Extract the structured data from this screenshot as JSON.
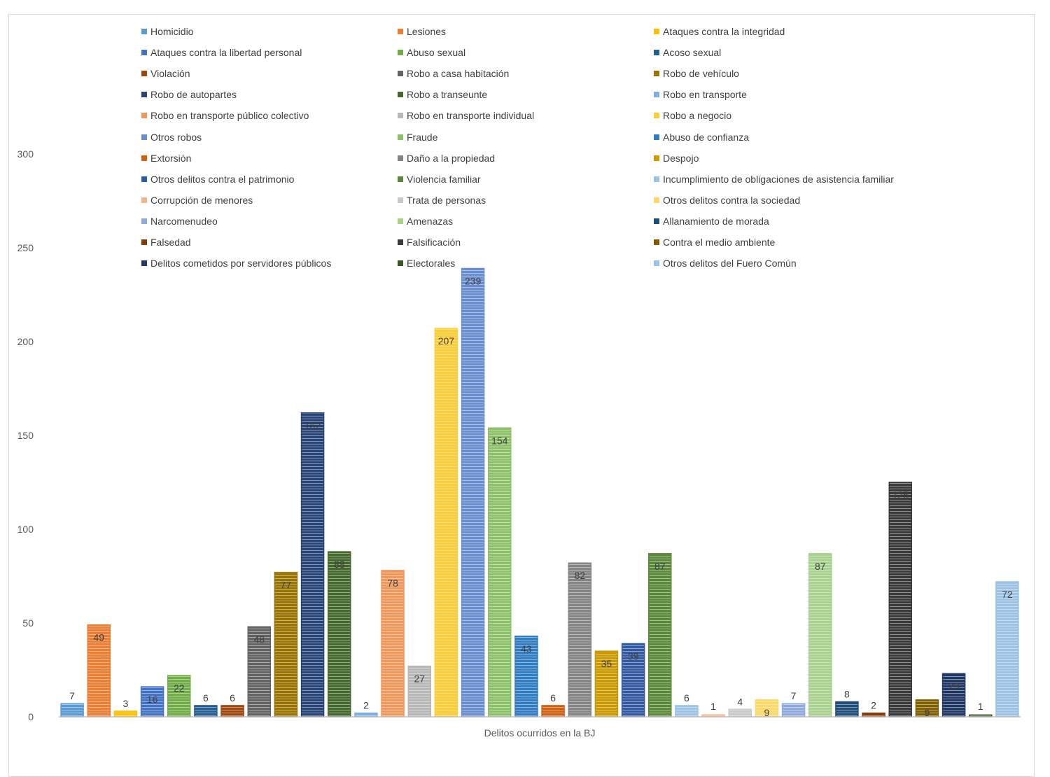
{
  "chart_data": {
    "type": "bar",
    "xlabel": "Delitos ocurridos en la BJ",
    "ylabel": "",
    "ylim": [
      0,
      300
    ],
    "yticks": [
      0,
      50,
      100,
      150,
      200,
      250,
      300
    ],
    "grid": false,
    "legend_position": "top",
    "series": [
      {
        "name": "Homicidio",
        "value": 7,
        "color": "#5b9bd5"
      },
      {
        "name": "Lesiones",
        "value": 49,
        "color": "#ed7d31"
      },
      {
        "name": "Ataques  contra la integridad",
        "value": 3,
        "color": "#ffc000"
      },
      {
        "name": "Ataques  contra la libertad personal",
        "value": 16,
        "color": "#4472c4"
      },
      {
        "name": "Abuso sexual",
        "value": 22,
        "color": "#70ad47"
      },
      {
        "name": "Acoso sexual",
        "value": 6,
        "color": "#255e91"
      },
      {
        "name": "Violación",
        "value": 6,
        "color": "#9e480e"
      },
      {
        "name": "Robo a casa habitación",
        "value": 48,
        "color": "#636363"
      },
      {
        "name": "Robo de vehículo",
        "value": 77,
        "color": "#997300"
      },
      {
        "name": "Robo de autopartes",
        "value": 162,
        "color": "#264478"
      },
      {
        "name": "Robo a transeunte",
        "value": 88,
        "color": "#43682b"
      },
      {
        "name": "Robo en transporte",
        "value": 2,
        "color": "#7cafdd"
      },
      {
        "name": "Robo en transporte público colectivo",
        "value": 78,
        "color": "#f1975a"
      },
      {
        "name": "Robo en transporte individual",
        "value": 27,
        "color": "#b7b7b7"
      },
      {
        "name": "Robo a negocio",
        "value": 207,
        "color": "#ffcd33"
      },
      {
        "name": "Otros robos",
        "value": 239,
        "color": "#698ed0"
      },
      {
        "name": "Fraude",
        "value": 154,
        "color": "#8cc168"
      },
      {
        "name": "Abuso de confianza",
        "value": 43,
        "color": "#327dc2"
      },
      {
        "name": "Extorsión",
        "value": 6,
        "color": "#d26012"
      },
      {
        "name": "Daño a la propiedad",
        "value": 82,
        "color": "#848484"
      },
      {
        "name": "Despojo",
        "value": 35,
        "color": "#cc9a00"
      },
      {
        "name": "Otros delitos contra el patrimonio",
        "value": 39,
        "color": "#335aa1"
      },
      {
        "name": "Violencia familiar",
        "value": 87,
        "color": "#5a8a39"
      },
      {
        "name": "Incumplimiento de obligaciones de asistencia familiar",
        "value": 6,
        "color": "#9dc3e6"
      },
      {
        "name": "Corrupción de menores",
        "value": 1,
        "color": "#f4b183"
      },
      {
        "name": "Trata de personas",
        "value": 4,
        "color": "#c9c9c9"
      },
      {
        "name": "Otros delitos contra la sociedad",
        "value": 9,
        "color": "#ffd966"
      },
      {
        "name": "Narcomenudeo",
        "value": 7,
        "color": "#8faadc"
      },
      {
        "name": "Amenazas",
        "value": 87,
        "color": "#a9d18e"
      },
      {
        "name": "Allanamiento de morada",
        "value": 8,
        "color": "#1f4e79"
      },
      {
        "name": "Falsedad",
        "value": 2,
        "color": "#843c0c"
      },
      {
        "name": "Falsificación",
        "value": 125,
        "color": "#3a3a3a"
      },
      {
        "name": "Contra el medio ambiente",
        "value": 9,
        "color": "#7f6000"
      },
      {
        "name": "Delitos cometidos por servidores públicos",
        "value": 23,
        "color": "#203864"
      },
      {
        "name": "Electorales",
        "value": 1,
        "color": "#385723"
      },
      {
        "name": "Otros delitos del Fuero Común",
        "value": 72,
        "color": "#9cc3e5"
      }
    ]
  }
}
